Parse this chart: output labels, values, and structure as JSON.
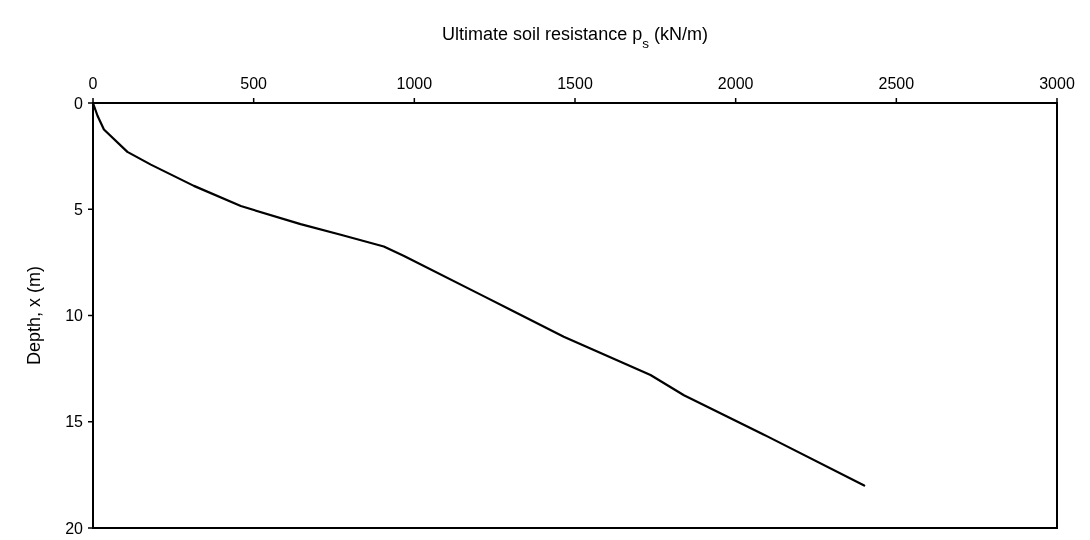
{
  "chart_data": {
    "type": "line",
    "xlabel": "Ultimate soil resistance p$_{s}$ (kN/m)",
    "ylabel": "Depth, x (m)",
    "x": [
      0,
      14,
      34,
      107,
      180,
      314,
      460,
      646,
      771,
      905,
      968,
      1217,
      1465,
      1735,
      1839,
      2100,
      2400
    ],
    "series": [
      {
        "color": "#000000",
        "values": [
          0,
          0.6,
          1.25,
          2.3,
          2.9,
          3.9,
          4.85,
          5.7,
          6.2,
          6.75,
          7.2,
          9.1,
          11,
          12.8,
          13.75,
          15.7,
          18
        ]
      }
    ],
    "xlim": [
      0,
      3000
    ],
    "xticks": [
      0,
      500,
      1000,
      1500,
      2000,
      2500,
      3000
    ],
    "ylim": [
      20,
      0
    ],
    "yticks": [
      0,
      5,
      10,
      15,
      20
    ],
    "grid": false,
    "marker": "none",
    "line_style": "solid"
  }
}
